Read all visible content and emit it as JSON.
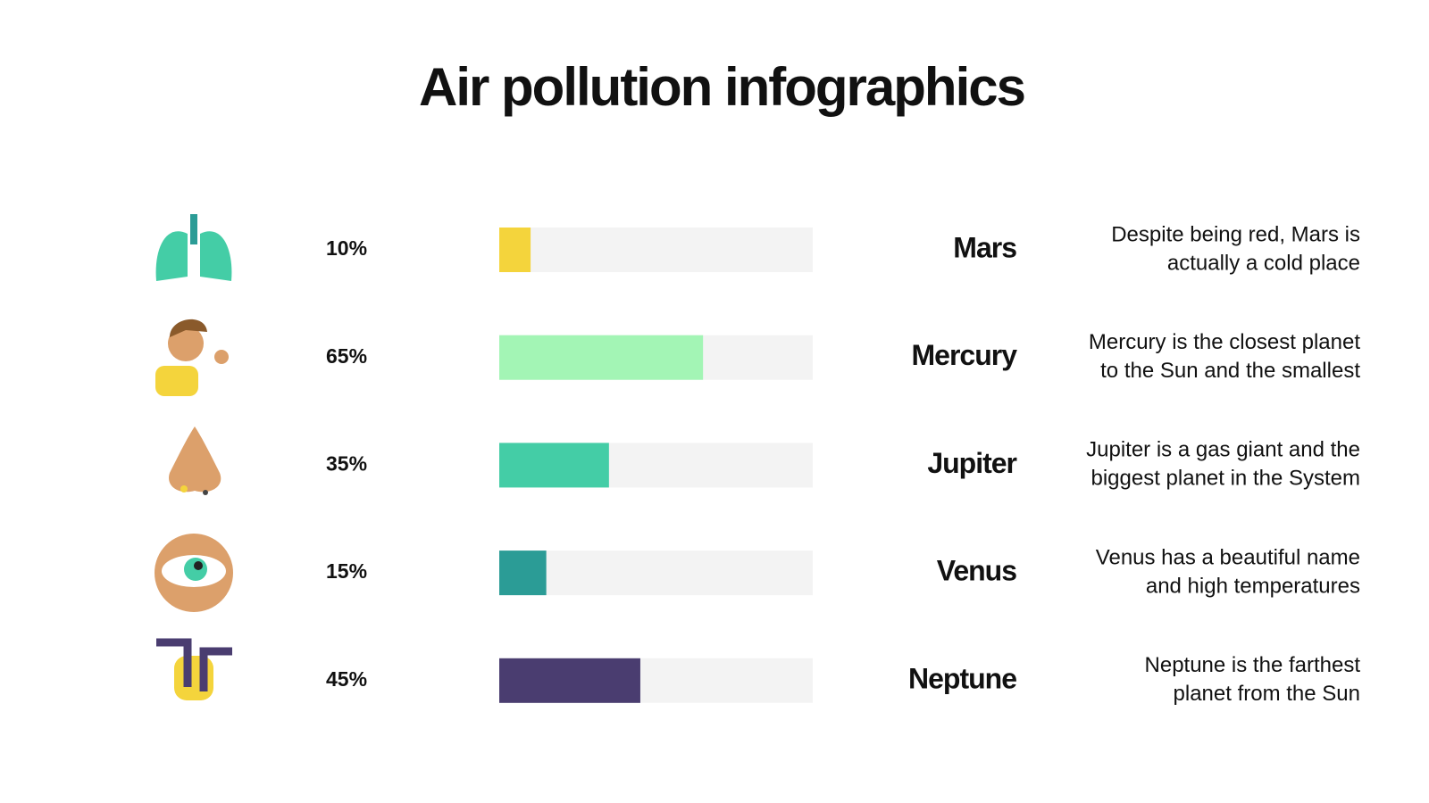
{
  "chart_data": {
    "type": "bar",
    "title": "Air pollution infographics",
    "categories": [
      "Mars",
      "Mercury",
      "Jupiter",
      "Venus",
      "Neptune"
    ],
    "values": [
      10,
      65,
      35,
      15,
      45
    ],
    "value_labels": [
      "10%",
      "65%",
      "35%",
      "15%",
      "45%"
    ],
    "colors": [
      "#f4d43c",
      "#a3f5b5",
      "#44cda6",
      "#2b9c96",
      "#4a3d70"
    ],
    "track_color": "#f3f3f3",
    "xlim": [
      0,
      100
    ],
    "descriptions": [
      [
        "Despite being red, Mars is",
        "actually a cold place"
      ],
      [
        "Mercury is the closest planet",
        "to the Sun and the smallest"
      ],
      [
        "Jupiter is a gas giant and the",
        "biggest planet in the System"
      ],
      [
        "Venus has a beautiful name",
        "and high temperatures"
      ],
      [
        "Neptune is the farthest",
        "planet from the Sun"
      ]
    ]
  }
}
